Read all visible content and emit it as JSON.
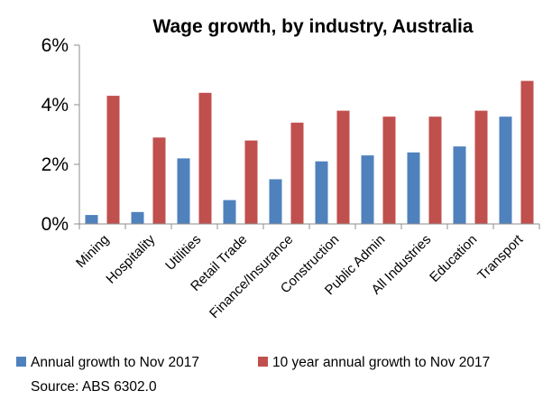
{
  "chart_data": {
    "type": "bar",
    "title": "Wage growth, by industry, Australia",
    "xlabel": "",
    "ylabel": "",
    "categories": [
      "Mining",
      "Hospitality",
      "Utilities",
      "Retail Trade",
      "Finance/Insurance",
      "Construction",
      "Public Admin",
      "All Industries",
      "Education",
      "Transport"
    ],
    "series": [
      {
        "name": "Annual growth to Nov 2017",
        "color": "#4F81BD",
        "values": [
          0.3,
          0.4,
          2.2,
          0.8,
          1.5,
          2.1,
          2.3,
          2.4,
          2.6,
          3.6
        ]
      },
      {
        "name": "10 year annual growth to Nov 2017",
        "color": "#C0504D",
        "values": [
          4.3,
          2.9,
          4.4,
          2.8,
          3.4,
          3.8,
          3.6,
          3.6,
          3.8,
          4.8
        ]
      }
    ],
    "ylim": [
      0,
      6
    ],
    "yticks": [
      0,
      2,
      4,
      6
    ],
    "ytick_format": "percent",
    "grid": false,
    "legend_position": "bottom"
  },
  "source": "Source: ABS 6302.0"
}
